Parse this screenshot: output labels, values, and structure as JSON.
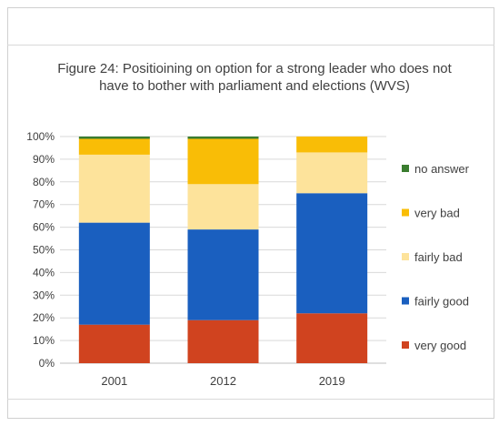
{
  "chart_data": {
    "type": "bar",
    "stacked": true,
    "title": "Figure 24: Positioining on option for a strong leader who does not have to bother with parliament and elections (WVS)",
    "categories": [
      "2001",
      "2012",
      "2019"
    ],
    "yticks": [
      "0%",
      "10%",
      "20%",
      "30%",
      "40%",
      "50%",
      "60%",
      "70%",
      "80%",
      "90%",
      "100%"
    ],
    "ylim": [
      0,
      100
    ],
    "grid": true,
    "legend_position": "right",
    "series": [
      {
        "name": "very good",
        "color": "#d0431f",
        "values": [
          17,
          19,
          22
        ]
      },
      {
        "name": "fairly good",
        "color": "#1a5fbf",
        "values": [
          45,
          40,
          53
        ]
      },
      {
        "name": "fairly bad",
        "color": "#fde39b",
        "values": [
          30,
          20,
          18
        ]
      },
      {
        "name": "very bad",
        "color": "#f9bd06",
        "values": [
          7,
          20,
          7
        ]
      },
      {
        "name": "no answer",
        "color": "#3a7d2f",
        "values": [
          1,
          1,
          0
        ]
      }
    ],
    "legend_order": [
      "no answer",
      "very bad",
      "fairly bad",
      "fairly good",
      "very good"
    ]
  }
}
